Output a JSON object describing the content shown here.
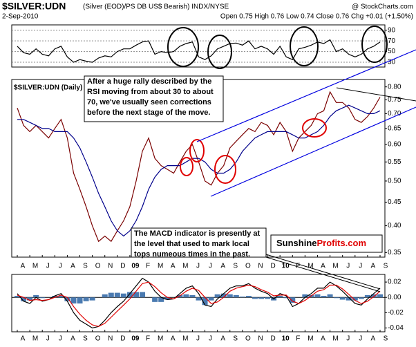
{
  "header": {
    "title": "$SILVER:UDN",
    "subtitle": "(Silver (EOD)/PS DB US$ Bearish) INDX/NYSE",
    "source": "@ StockCharts.com",
    "date": "2-Sep-2010",
    "quote": "Open 0.75 High 0.76 Low 0.74 Close 0.76 Chg +0.01 (+1.50%)"
  },
  "chart_data": [
    {
      "type": "line",
      "grid": true,
      "ylim": [
        21,
        100
      ],
      "yticks": [
        90,
        70,
        50,
        30
      ],
      "series": [
        {
          "name": null,
          "color": "#000000",
          "values": [
            60,
            48,
            45,
            55,
            45,
            42,
            55,
            60,
            40,
            30,
            35,
            32,
            30,
            38,
            42,
            40,
            50,
            55,
            55,
            62,
            68,
            70,
            45,
            50,
            48,
            50,
            60,
            65,
            68,
            40,
            35,
            42,
            55,
            60,
            65,
            66,
            62,
            70,
            55,
            60,
            55,
            45,
            60,
            40,
            35,
            55,
            58,
            62,
            68,
            65,
            72,
            50,
            55,
            45,
            40,
            45,
            55,
            60,
            68
          ]
        }
      ]
    },
    {
      "type": "line",
      "title": "$SILVER:UDN (Daily)",
      "log_scale": true,
      "grid": false,
      "ylim": [
        0.342,
        0.83
      ],
      "yticks": [
        0.35,
        {
          "value": 0.4,
          "label": "0.40"
        },
        0.45,
        {
          "value": 0.5,
          "label": "0.50"
        },
        0.55,
        {
          "value": 0.6,
          "label": "0.60"
        },
        0.65,
        {
          "value": 0.7,
          "label": "0.70"
        },
        0.75,
        {
          "value": 0.8,
          "label": "0.80"
        }
      ],
      "categories": [
        "A",
        null,
        "M",
        null,
        "J",
        null,
        "J",
        null,
        "A",
        null,
        "S",
        null,
        "O",
        null,
        "N",
        null,
        "D",
        null,
        "09",
        null,
        "F",
        null,
        "M",
        null,
        "A",
        null,
        "M",
        null,
        "J",
        null,
        "J",
        null,
        "A",
        null,
        "S",
        null,
        "O",
        null,
        "N",
        null,
        "D",
        null,
        "10",
        null,
        "F",
        null,
        "M",
        null,
        "A",
        null,
        "M",
        null,
        "J",
        null,
        "J",
        null,
        "A",
        null,
        "S"
      ],
      "series": [
        {
          "name": null,
          "color": "#7a0000",
          "values": [
            0.72,
            0.66,
            0.64,
            0.66,
            0.64,
            0.62,
            0.65,
            0.68,
            0.62,
            0.52,
            0.48,
            0.44,
            0.4,
            0.37,
            0.38,
            0.37,
            0.39,
            0.41,
            0.44,
            0.5,
            0.58,
            0.62,
            0.56,
            0.54,
            0.53,
            0.52,
            0.55,
            0.58,
            0.6,
            0.55,
            0.5,
            0.49,
            0.52,
            0.54,
            0.59,
            0.61,
            0.63,
            0.65,
            0.64,
            0.67,
            0.66,
            0.63,
            0.67,
            0.64,
            0.58,
            0.62,
            0.64,
            0.66,
            0.7,
            0.71,
            0.78,
            0.74,
            0.74,
            0.72,
            0.68,
            0.67,
            0.69,
            0.72,
            0.76
          ]
        },
        {
          "name": null,
          "color": "#00008b",
          "values": [
            0.68,
            0.68,
            0.67,
            0.66,
            0.65,
            0.65,
            0.64,
            0.64,
            0.64,
            0.62,
            0.59,
            0.55,
            0.51,
            0.47,
            0.44,
            0.41,
            0.39,
            0.38,
            0.39,
            0.41,
            0.44,
            0.48,
            0.51,
            0.53,
            0.54,
            0.54,
            0.54,
            0.55,
            0.56,
            0.56,
            0.55,
            0.53,
            0.52,
            0.52,
            0.53,
            0.55,
            0.58,
            0.6,
            0.62,
            0.63,
            0.64,
            0.64,
            0.64,
            0.64,
            0.63,
            0.62,
            0.62,
            0.63,
            0.64,
            0.66,
            0.69,
            0.71,
            0.72,
            0.73,
            0.72,
            0.71,
            0.7,
            0.7,
            0.71
          ]
        }
      ],
      "annotations": [
        [
          "After a huge rally described by the",
          "RSI moving from about 30 to about",
          "70, we've usually seen corrections",
          "before the next stage of the move."
        ],
        [
          "The MACD indicator is presently at",
          "the level that used to mark local",
          "tops numeous times in the past."
        ]
      ],
      "logo": [
        "Sunshine",
        "Profits.com"
      ]
    },
    {
      "type": "macd",
      "ylim": [
        -0.045,
        0.03
      ],
      "yticks": [
        0.02,
        {
          "value": 0,
          "label": "0.00"
        },
        -0.02,
        -0.04
      ],
      "categories": [
        "A",
        null,
        "M",
        null,
        "J",
        null,
        "J",
        null,
        "A",
        null,
        "S",
        null,
        "O",
        null,
        "N",
        null,
        "D",
        null,
        "09",
        null,
        "F",
        null,
        "M",
        null,
        "A",
        null,
        "M",
        null,
        "J",
        null,
        "J",
        null,
        "A",
        null,
        "S",
        null,
        "O",
        null,
        "N",
        null,
        "D",
        null,
        "10",
        null,
        "F",
        null,
        "M",
        null,
        "A",
        null,
        "M",
        null,
        "J",
        null,
        "J",
        null,
        "A",
        null,
        "S"
      ],
      "series": [
        {
          "name": null,
          "color": "#000000",
          "values": [
            0.005,
            -0.005,
            -0.008,
            0.0,
            -0.005,
            -0.003,
            0.002,
            0.005,
            -0.005,
            -0.02,
            -0.03,
            -0.035,
            -0.04,
            -0.038,
            -0.03,
            -0.02,
            -0.012,
            -0.005,
            0.005,
            0.015,
            0.025,
            0.02,
            0.008,
            0.0,
            -0.003,
            -0.002,
            0.005,
            0.012,
            0.015,
            0.005,
            -0.01,
            -0.012,
            -0.002,
            0.005,
            0.012,
            0.015,
            0.015,
            0.018,
            0.012,
            0.008,
            0.005,
            -0.002,
            0.005,
            0.002,
            -0.012,
            -0.008,
            0.0,
            0.005,
            0.012,
            0.012,
            0.02,
            0.015,
            0.008,
            0.0,
            -0.008,
            -0.01,
            -0.002,
            0.005,
            0.012
          ]
        },
        {
          "name": null,
          "color": "#e00000",
          "values": [
            0.003,
            0.0,
            -0.004,
            -0.003,
            -0.004,
            -0.003,
            0.0,
            0.003,
            0.0,
            -0.012,
            -0.022,
            -0.03,
            -0.036,
            -0.038,
            -0.034,
            -0.026,
            -0.018,
            -0.01,
            -0.002,
            0.008,
            0.018,
            0.02,
            0.014,
            0.006,
            0.0,
            -0.002,
            0.002,
            0.008,
            0.012,
            0.009,
            0.0,
            -0.008,
            -0.006,
            0.0,
            0.008,
            0.012,
            0.014,
            0.016,
            0.014,
            0.01,
            0.007,
            0.002,
            0.003,
            0.003,
            -0.005,
            -0.008,
            -0.004,
            0.002,
            0.008,
            0.01,
            0.016,
            0.016,
            0.011,
            0.004,
            -0.004,
            -0.008,
            -0.005,
            0.001,
            0.008
          ]
        },
        {
          "name": null,
          "color": "#4a7ab0",
          "kind": "histogram",
          "values": [
            0.002,
            -0.005,
            -0.004,
            0.003,
            -0.001,
            0,
            0.002,
            0.002,
            -0.005,
            -0.008,
            -0.008,
            -0.005,
            -0.004,
            0,
            0.004,
            0.006,
            0.006,
            0.005,
            0.007,
            0.007,
            0.007,
            0,
            -0.006,
            -0.006,
            -0.003,
            0,
            0.003,
            0.004,
            0.003,
            -0.004,
            -0.01,
            -0.004,
            0.004,
            0.005,
            0.004,
            0.003,
            0.001,
            0.002,
            -0.002,
            -0.002,
            -0.002,
            -0.004,
            0.002,
            -0.001,
            -0.007,
            0,
            0.004,
            0.003,
            0.004,
            0.002,
            0.004,
            -0.001,
            -0.003,
            -0.004,
            -0.004,
            -0.002,
            0.003,
            0.004,
            0.004
          ]
        }
      ]
    }
  ]
}
